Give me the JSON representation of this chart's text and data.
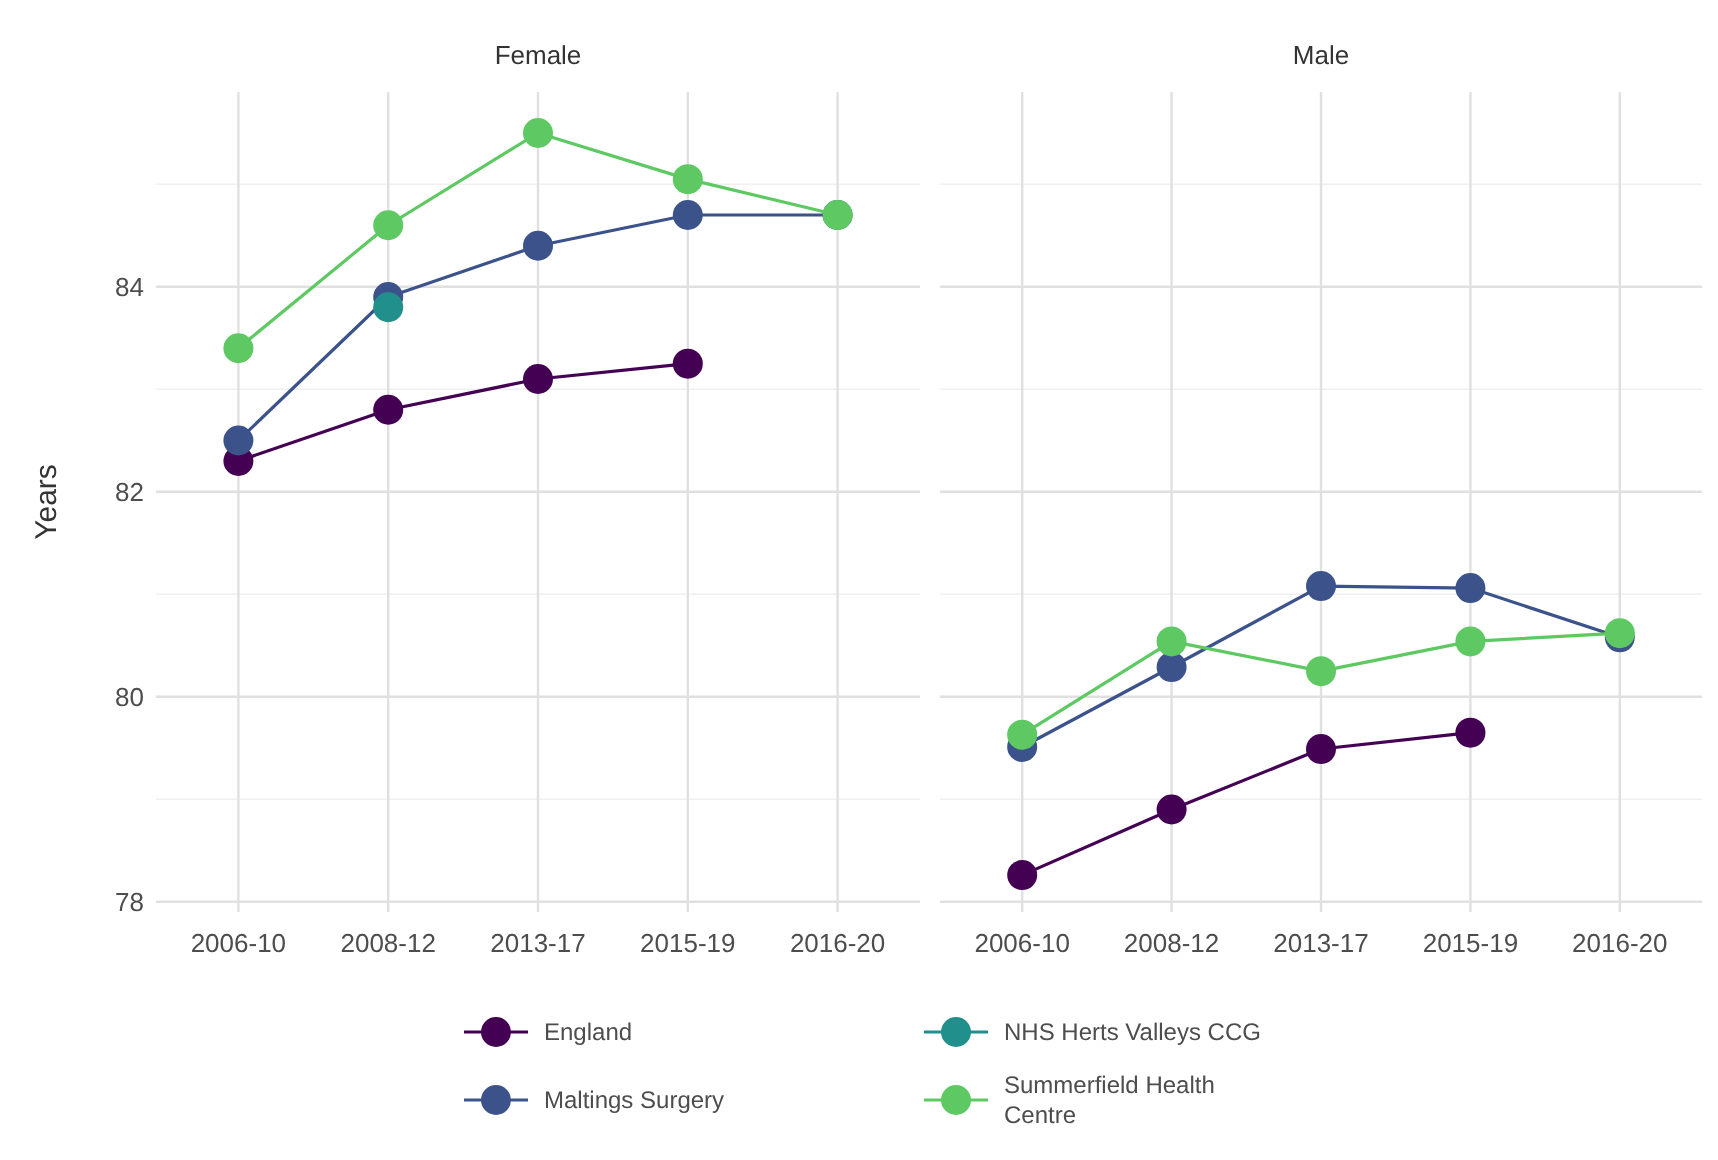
{
  "chart_data": [
    {
      "type": "line",
      "title": "Female",
      "ylabel": "Years",
      "categories": [
        "2006-10",
        "2008-12",
        "2013-17",
        "2015-19",
        "2016-20"
      ],
      "ylim": [
        77.9,
        85.9
      ],
      "yticks": [
        78,
        {
          "value": 79,
          "label": null
        },
        80,
        {
          "value": 81,
          "label": null
        },
        82,
        {
          "value": 83,
          "label": null
        },
        84,
        {
          "value": 85,
          "label": null
        }
      ],
      "grid": true,
      "legend": "bottom",
      "marker": "circle",
      "line_style": "solid",
      "series": [
        {
          "name": "England",
          "color": "#440154",
          "values": [
            82.3,
            82.8,
            83.1,
            83.25,
            null
          ]
        },
        {
          "name": "Maltings Surgery",
          "color": "#3b528b",
          "values": [
            82.5,
            83.9,
            84.4,
            84.7,
            84.7
          ]
        },
        {
          "name": "NHS Herts Valleys CCG",
          "color": "#21908c",
          "values": [
            null,
            83.8,
            null,
            null,
            null
          ]
        },
        {
          "name": "Summerfield Health Centre",
          "color": "#5ec962",
          "values": [
            83.4,
            84.6,
            85.5,
            85.05,
            84.7
          ]
        }
      ]
    },
    {
      "type": "line",
      "title": "Male",
      "categories": [
        "2006-10",
        "2008-12",
        "2013-17",
        "2015-19",
        "2016-20"
      ],
      "ylim": [
        77.9,
        85.9
      ],
      "yticks": [
        78,
        {
          "value": 79,
          "label": null
        },
        80,
        {
          "value": 81,
          "label": null
        },
        82,
        {
          "value": 83,
          "label": null
        },
        84,
        {
          "value": 85,
          "label": null
        }
      ],
      "tick_labels": "x",
      "grid": true,
      "marker": "circle",
      "line_style": "solid",
      "series": [
        {
          "color": "#440154",
          "values": [
            78.26,
            78.9,
            79.49,
            79.65,
            null
          ]
        },
        {
          "color": "#3b528b",
          "values": [
            79.51,
            80.29,
            81.08,
            81.06,
            80.58
          ]
        },
        {
          "color": "#21908c",
          "values": [
            null,
            null,
            null,
            null,
            null
          ]
        },
        {
          "color": "#5ec962",
          "values": [
            79.63,
            80.54,
            80.25,
            80.54,
            80.62
          ]
        }
      ]
    }
  ]
}
